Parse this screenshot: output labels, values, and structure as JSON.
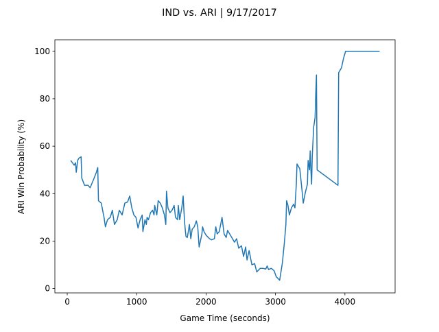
{
  "chart_data": {
    "type": "line",
    "title": "IND vs. ARI | 9/17/2017",
    "x_label": "Game Time (seconds)",
    "y_label": "ARI Win Probability (%)",
    "xlim": [
      -178,
      4723
    ],
    "ylim": [
      -1.85,
      104.85
    ],
    "xticks": [
      0,
      1000,
      2000,
      3000,
      4000
    ],
    "yticks": [
      0,
      20,
      40,
      60,
      80,
      100
    ],
    "grid": false,
    "series": [
      {
        "name": "ARI",
        "color": "#1f77b4",
        "x": [
          50,
          100,
          120,
          130,
          150,
          170,
          200,
          210,
          250,
          300,
          330,
          380,
          420,
          440,
          450,
          490,
          530,
          550,
          580,
          620,
          650,
          680,
          720,
          750,
          790,
          830,
          870,
          900,
          930,
          960,
          990,
          1020,
          1050,
          1080,
          1090,
          1120,
          1140,
          1150,
          1170,
          1200,
          1230,
          1250,
          1260,
          1290,
          1310,
          1340,
          1370,
          1400,
          1420,
          1430,
          1450,
          1480,
          1510,
          1540,
          1560,
          1590,
          1600,
          1620,
          1650,
          1670,
          1690,
          1710,
          1730,
          1760,
          1780,
          1800,
          1830,
          1860,
          1880,
          1900,
          1940,
          1950,
          1970,
          2000,
          2050,
          2080,
          2120,
          2140,
          2160,
          2190,
          2230,
          2260,
          2290,
          2310,
          2350,
          2380,
          2410,
          2440,
          2470,
          2510,
          2540,
          2570,
          2590,
          2620,
          2660,
          2700,
          2730,
          2780,
          2820,
          2860,
          2880,
          2900,
          2940,
          2980,
          3010,
          3060,
          3100,
          3130,
          3150,
          3160,
          3180,
          3200,
          3230,
          3260,
          3280,
          3300,
          3310,
          3350,
          3380,
          3400,
          3430,
          3460,
          3470,
          3490,
          3500,
          3510,
          3520,
          3530,
          3550,
          3570,
          3580,
          3590,
          3600,
          3900,
          3910,
          3950,
          3980,
          4010,
          4500
        ],
        "values": [
          54,
          52,
          53,
          49,
          54,
          55,
          55.5,
          46.5,
          43.5,
          43.5,
          42.5,
          46,
          49,
          51,
          37,
          36,
          30,
          26,
          29,
          30,
          33,
          27,
          29,
          33,
          31,
          36,
          36.5,
          39,
          34,
          31,
          30,
          25.5,
          29,
          31,
          24,
          29,
          27,
          30,
          29,
          32,
          33,
          31,
          35,
          31,
          37,
          36,
          34,
          31,
          27,
          41,
          34,
          32,
          33,
          35,
          30,
          29,
          35,
          29,
          34,
          39,
          28,
          22,
          21.5,
          27,
          21,
          25,
          26,
          28.5,
          26,
          17.5,
          23,
          26,
          24,
          22.5,
          21,
          20.5,
          21,
          26,
          23,
          24,
          30,
          23,
          21.5,
          24.5,
          22.5,
          21,
          19.5,
          21,
          17,
          18,
          13.5,
          17.5,
          12,
          16,
          10,
          10.5,
          7,
          8.5,
          8.5,
          8.2,
          9.5,
          8,
          8.5,
          7.5,
          5,
          3.5,
          11,
          20,
          27,
          37,
          35,
          31,
          34,
          35.5,
          34,
          44,
          52.5,
          50.5,
          42,
          36,
          40.5,
          44,
          54,
          50,
          58,
          50,
          44,
          56,
          68,
          72,
          82,
          90,
          50,
          43.5,
          91,
          93,
          97,
          100,
          100
        ]
      }
    ]
  }
}
